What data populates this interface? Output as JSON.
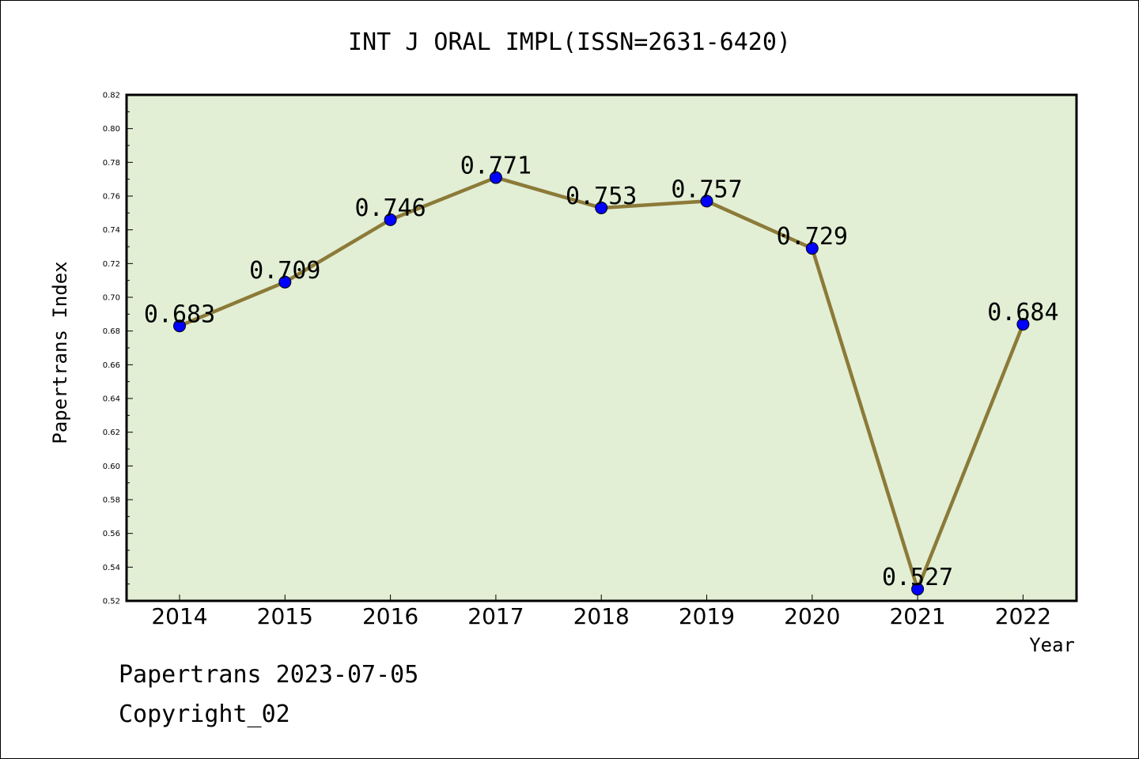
{
  "chart_data": {
    "type": "line",
    "title": "INT J ORAL IMPL(ISSN=2631-6420)",
    "xlabel": "Year",
    "ylabel": "Papertrans Index",
    "categories": [
      "2014",
      "2015",
      "2016",
      "2017",
      "2018",
      "2019",
      "2020",
      "2021",
      "2022"
    ],
    "values": [
      0.683,
      0.709,
      0.746,
      0.771,
      0.753,
      0.757,
      0.729,
      0.527,
      0.684
    ],
    "data_labels": [
      "0.683",
      "0.709",
      "0.746",
      "0.771",
      "0.753",
      "0.757",
      "0.729",
      "0.527",
      "0.684"
    ],
    "ylim": [
      0.52,
      0.82
    ],
    "yticks": [
      "0.52",
      "0.54",
      "0.56",
      "0.58",
      "0.60",
      "0.62",
      "0.64",
      "0.66",
      "0.68",
      "0.70",
      "0.72",
      "0.74",
      "0.76",
      "0.78",
      "0.80",
      "0.82"
    ],
    "grid": false,
    "legend": "none",
    "colors": {
      "plot_background": "#e2efd5",
      "line": "#8c7a38",
      "marker": "#0000ff"
    }
  },
  "footer": {
    "line1": "Papertrans 2023-07-05",
    "line2": "Copyright_02"
  }
}
